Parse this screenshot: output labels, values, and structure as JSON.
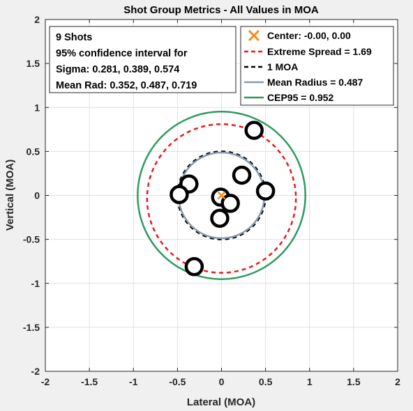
{
  "chart_data": {
    "type": "scatter",
    "title": "Shot Group Metrics - All Values in MOA",
    "xlabel": "Lateral (MOA)",
    "ylabel": "Vertical (MOA)",
    "xlim": [
      -2,
      2
    ],
    "ylim": [
      -2,
      2
    ],
    "xticks": [
      -2,
      -1.5,
      -1,
      -0.5,
      0,
      0.5,
      1,
      1.5,
      2
    ],
    "yticks": [
      -2,
      -1.5,
      -1,
      -0.5,
      0,
      0.5,
      1,
      1.5,
      2
    ],
    "xtick_labels": [
      "-2",
      "-1.5",
      "-1",
      "-0.5",
      "0",
      "0.5",
      "1",
      "1.5",
      "2"
    ],
    "ytick_labels": [
      "-2",
      "-1.5",
      "-1",
      "-0.5",
      "0",
      "0.5",
      "1",
      "1.5",
      "2"
    ],
    "grid": true,
    "shots": {
      "x": [
        0.37,
        -0.37,
        -0.48,
        0.23,
        0.5,
        -0.01,
        0.1,
        -0.02,
        -0.31
      ],
      "y": [
        0.74,
        0.13,
        0.01,
        0.23,
        0.05,
        -0.02,
        -0.09,
        -0.26,
        -0.81
      ],
      "color": "#000000"
    },
    "center": {
      "x": 0.0,
      "y": 0.0,
      "color": "#f28c1c"
    },
    "circles": [
      {
        "label": "Extreme Spread = 1.69",
        "radius": 0.845,
        "center_y": -0.035,
        "color": "#e8191c",
        "style": "dashed"
      },
      {
        "label": "1 MOA",
        "radius": 0.5,
        "center_y": 0.0,
        "color": "#000000",
        "style": "dashed"
      },
      {
        "label": "Mean Radius = 0.487",
        "radius": 0.487,
        "center_y": 0.0,
        "color": "#8a9aaa",
        "style": "solid"
      },
      {
        "label": "CEP95 = 0.952",
        "radius": 0.952,
        "center_y": 0.0,
        "color": "#2e9a5f",
        "style": "solid"
      }
    ],
    "legend": {
      "placement": "top-right",
      "items": [
        {
          "label": "Center: -0.00, 0.00",
          "marker": "x",
          "color": "#f28c1c"
        },
        {
          "label": "Extreme Spread = 1.69",
          "marker": "dashed-line",
          "color": "#e8191c"
        },
        {
          "label": "1 MOA",
          "marker": "dashed-line",
          "color": "#000000"
        },
        {
          "label": "Mean Radius = 0.487",
          "marker": "line",
          "color": "#8a9aaa"
        },
        {
          "label": "CEP95 = 0.952",
          "marker": "line",
          "color": "#2e9a5f"
        }
      ]
    },
    "info_box": {
      "placement": "top-left",
      "lines": [
        "9 Shots",
        "95% confidence interval for",
        "Sigma: 0.281, 0.389, 0.574",
        "Mean Rad: 0.352, 0.487, 0.719"
      ]
    }
  }
}
